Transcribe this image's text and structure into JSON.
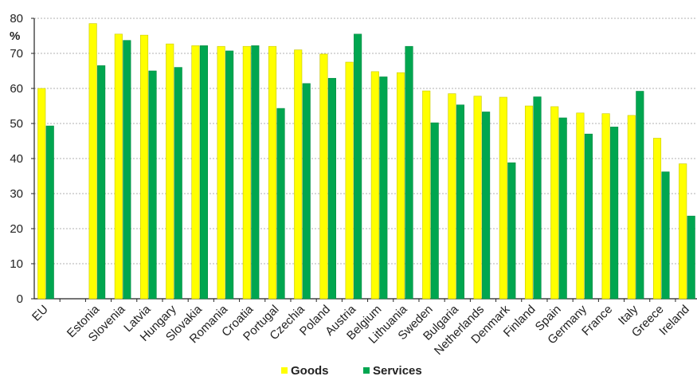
{
  "chart_data": {
    "type": "bar",
    "ylabel": "%",
    "ylim": [
      0,
      80
    ],
    "yticks": [
      0,
      10,
      20,
      30,
      40,
      50,
      60,
      70,
      80
    ],
    "grid": true,
    "legend_position": "bottom-center",
    "categories": [
      "EU",
      "",
      "Estonia",
      "Slovenia",
      "Latvia",
      "Hungary",
      "Slovakia",
      "Romania",
      "Croatia",
      "Portugal",
      "Czechia",
      "Poland",
      "Austria",
      "Belgium",
      "Lithuania",
      "Sweden",
      "Bulgaria",
      "Netherlands",
      "Denmark",
      "Finland",
      "Spain",
      "Germany",
      "France",
      "Italy",
      "Greece",
      "Ireland"
    ],
    "series": [
      {
        "name": "Goods",
        "color": "#ffff00",
        "values": [
          60.0,
          null,
          78.5,
          75.5,
          75.2,
          72.7,
          72.2,
          72.0,
          72.0,
          72.0,
          71.0,
          69.8,
          67.5,
          64.8,
          64.5,
          59.3,
          58.5,
          57.8,
          57.5,
          55.0,
          54.8,
          53.0,
          52.8,
          52.3,
          45.8,
          38.5
        ]
      },
      {
        "name": "Services",
        "color": "#00a650",
        "values": [
          49.3,
          null,
          66.5,
          73.7,
          65.0,
          66.0,
          72.2,
          70.7,
          72.2,
          54.3,
          61.4,
          62.9,
          75.5,
          63.3,
          72.0,
          50.2,
          55.3,
          53.3,
          38.8,
          57.6,
          51.6,
          47.0,
          49.0,
          59.2,
          36.2,
          23.6
        ]
      }
    ]
  }
}
